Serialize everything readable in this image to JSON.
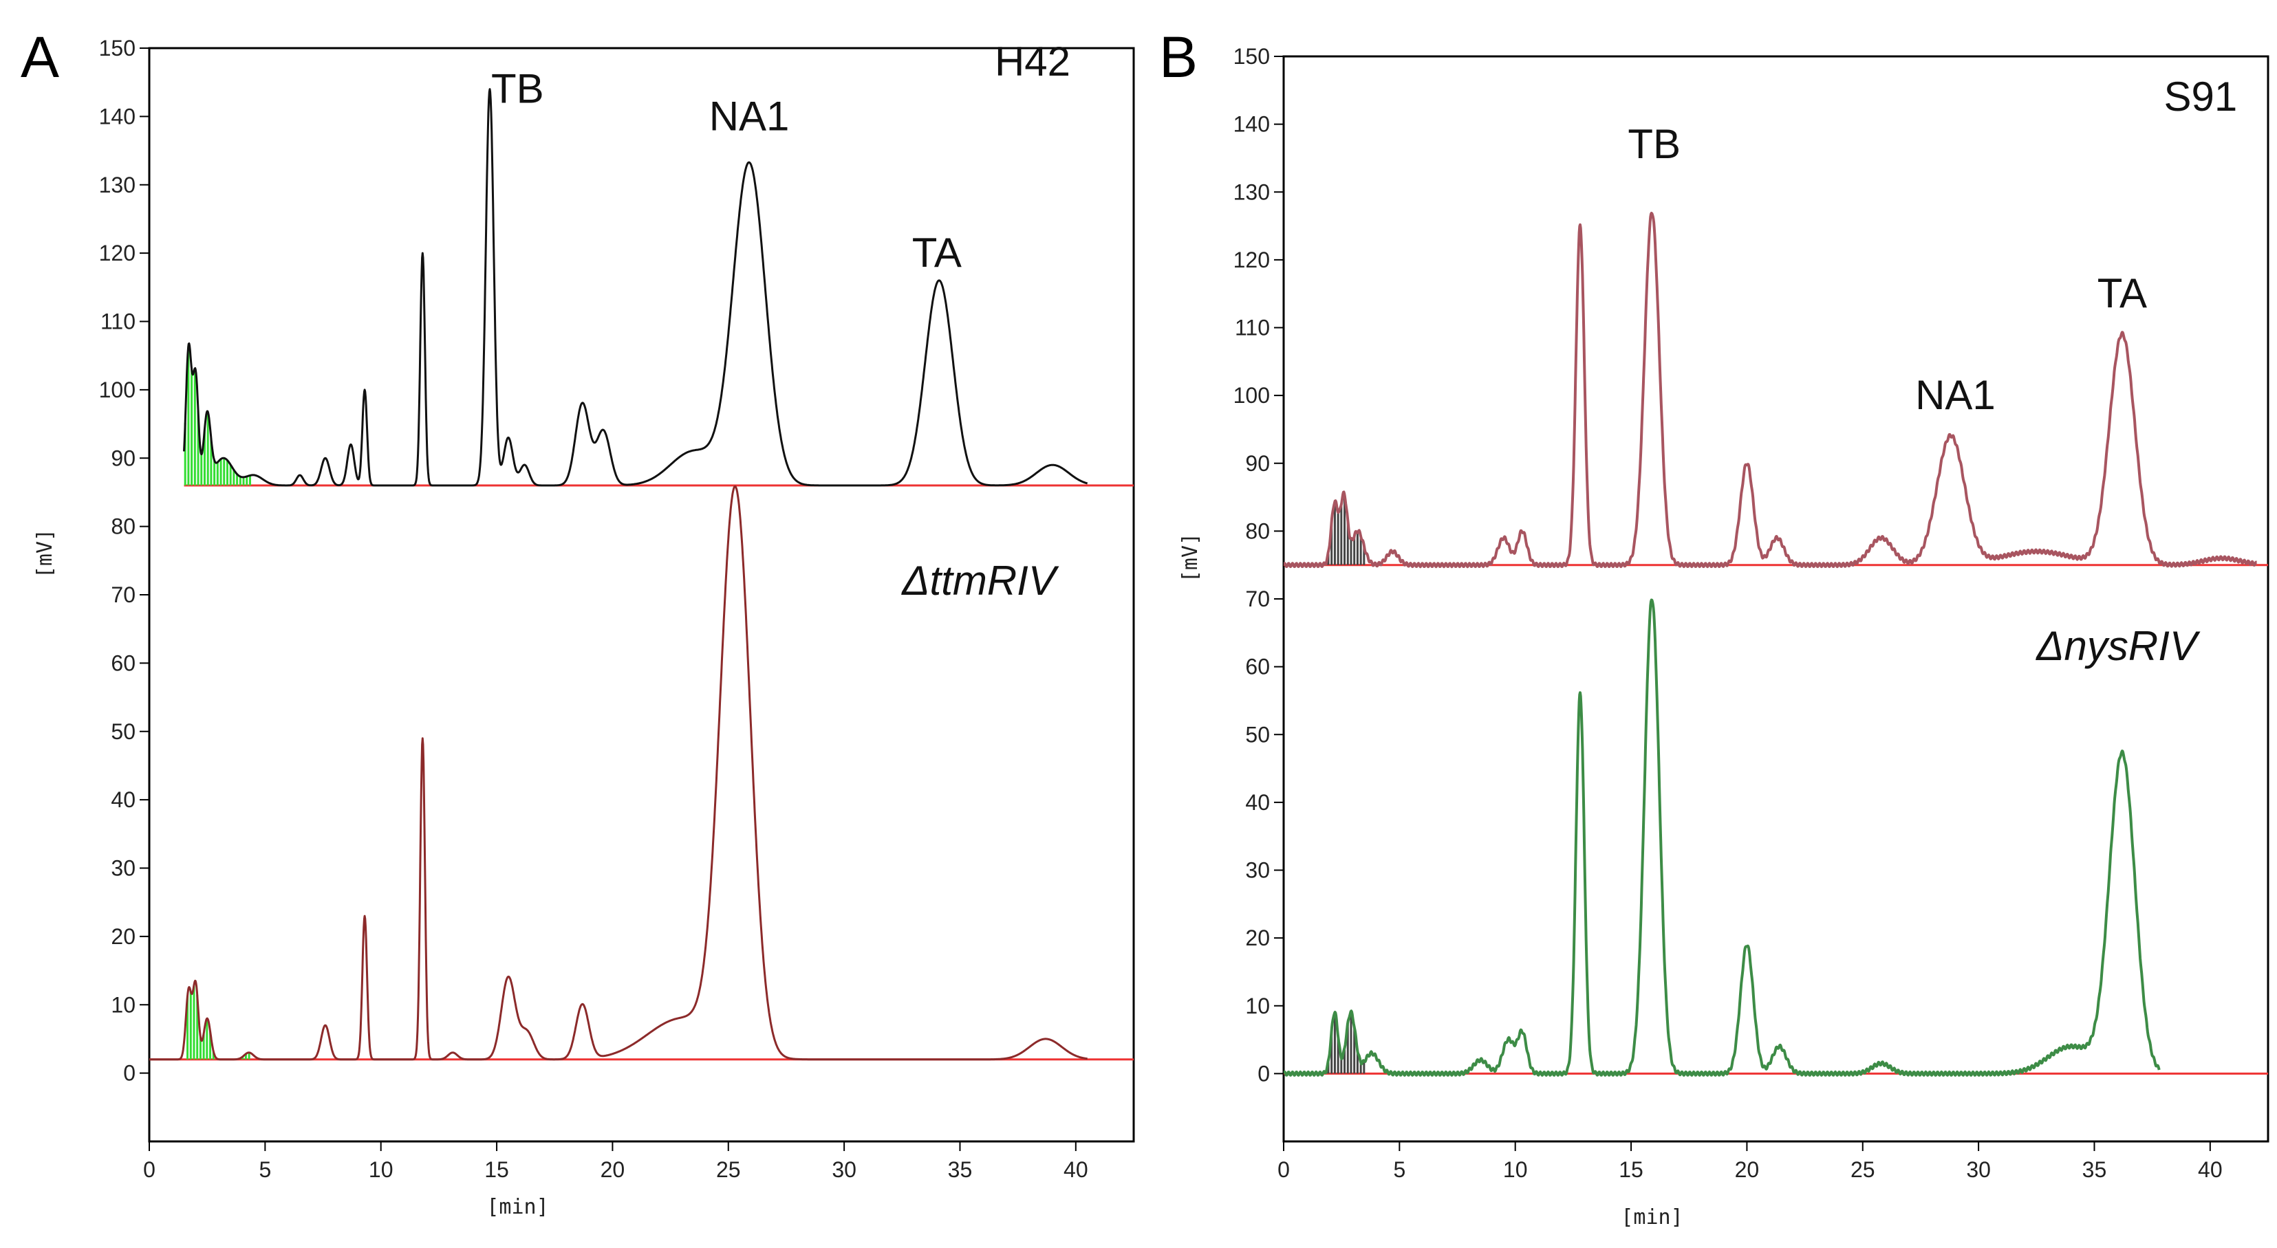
{
  "chart_data": [
    {
      "panel_label": "A",
      "type": "line",
      "xlabel": "[min]",
      "ylabel": "[mV]",
      "xlim": [
        0,
        42.5
      ],
      "x_ticks": [
        0,
        5,
        10,
        15,
        20,
        25,
        30,
        35,
        40
      ],
      "x_tick_labels": [
        "0",
        "5",
        "10",
        "15",
        "20",
        "25",
        "30",
        "35",
        "40"
      ],
      "ylim": [
        -10,
        150
      ],
      "y_ticks": [
        0,
        10,
        20,
        30,
        40,
        50,
        60,
        70,
        80,
        90,
        100,
        110,
        120,
        130,
        140,
        150
      ],
      "y_tick_labels": [
        "0",
        "10",
        "20",
        "30",
        "40",
        "50",
        "60",
        "70",
        "80",
        "90",
        "100",
        "110",
        "120",
        "130",
        "140",
        "150"
      ],
      "series": [
        {
          "name": "H42",
          "color": "#111111",
          "baseline": 86,
          "start": 1.5,
          "end": 40.5,
          "peaks": [
            [
              1.7,
              20,
              0.12
            ],
            [
              2.0,
              16,
              0.12
            ],
            [
              2.5,
              10,
              0.15
            ],
            [
              3.2,
              4,
              0.4
            ],
            [
              4.5,
              1.5,
              0.4
            ],
            [
              6.5,
              1.5,
              0.15
            ],
            [
              7.6,
              4,
              0.18
            ],
            [
              8.7,
              6,
              0.15
            ],
            [
              9.3,
              14,
              0.1
            ],
            [
              11.8,
              34,
              0.1
            ],
            [
              14.7,
              58,
              0.17
            ],
            [
              15.5,
              7,
              0.2
            ],
            [
              16.2,
              3,
              0.2
            ],
            [
              18.7,
              12,
              0.3
            ],
            [
              19.6,
              8,
              0.3
            ],
            [
              23.5,
              5,
              1.0
            ],
            [
              25.9,
              47,
              0.7
            ],
            [
              34.1,
              30,
              0.6
            ],
            [
              39.0,
              3,
              0.7
            ]
          ],
          "label": "H42",
          "label_x": 36.5,
          "label_y": 146
        },
        {
          "name": "ΔttmRIV",
          "color": "#8c2a2a",
          "baseline": 2,
          "start": 0,
          "end": 40.5,
          "peaks": [
            [
              1.7,
              10,
              0.12
            ],
            [
              2.0,
              11,
              0.12
            ],
            [
              2.5,
              6,
              0.15
            ],
            [
              4.3,
              1,
              0.2
            ],
            [
              7.6,
              5,
              0.18
            ],
            [
              9.3,
              21,
              0.1
            ],
            [
              11.8,
              47,
              0.1
            ],
            [
              13.1,
              1,
              0.2
            ],
            [
              15.5,
              12,
              0.3
            ],
            [
              16.3,
              4,
              0.3
            ],
            [
              18.7,
              8,
              0.28
            ],
            [
              23.0,
              6,
              1.5
            ],
            [
              25.3,
              82,
              0.65
            ],
            [
              38.7,
              3,
              0.7
            ]
          ],
          "label": "ΔttmRIV",
          "label_x": 32.5,
          "label_y": 70
        }
      ],
      "annotations": [
        {
          "text": "TB",
          "x": 15.9,
          "y": 142
        },
        {
          "text": "NA1",
          "x": 25.9,
          "y": 138
        },
        {
          "text": "TA",
          "x": 34.0,
          "y": 118
        }
      ],
      "baseline_color": "#ee3333",
      "fill_color": "#33dd33"
    },
    {
      "panel_label": "B",
      "type": "line",
      "xlabel": "[min]",
      "ylabel": "[mV]",
      "xlim": [
        0,
        42.5
      ],
      "x_ticks": [
        0,
        5,
        10,
        15,
        20,
        25,
        30,
        35,
        40
      ],
      "x_tick_labels": [
        "0",
        "5",
        "10",
        "15",
        "20",
        "25",
        "30",
        "35",
        "40"
      ],
      "ylim": [
        -10,
        150
      ],
      "y_ticks": [
        0,
        10,
        20,
        30,
        40,
        50,
        60,
        70,
        80,
        90,
        100,
        110,
        120,
        130,
        140,
        150
      ],
      "y_tick_labels": [
        "0",
        "10",
        "20",
        "30",
        "40",
        "50",
        "60",
        "70",
        "80",
        "90",
        "100",
        "110",
        "120",
        "130",
        "140",
        "150"
      ],
      "series": [
        {
          "name": "S91",
          "color": "#a85560",
          "baseline": 75,
          "start": 0,
          "end": 42,
          "peaks": [
            [
              2.2,
              9,
              0.15
            ],
            [
              2.6,
              10,
              0.15
            ],
            [
              3.2,
              5,
              0.25
            ],
            [
              4.7,
              2,
              0.25
            ],
            [
              9.5,
              4,
              0.25
            ],
            [
              10.3,
              5,
              0.2
            ],
            [
              12.8,
              50,
              0.18
            ],
            [
              15.9,
              52,
              0.32
            ],
            [
              20.0,
              15,
              0.28
            ],
            [
              21.3,
              4,
              0.3
            ],
            [
              25.8,
              4,
              0.5
            ],
            [
              28.8,
              19,
              0.6
            ],
            [
              32.5,
              2,
              1.5
            ],
            [
              36.2,
              34,
              0.55
            ],
            [
              40.5,
              1,
              0.8
            ]
          ],
          "label": "S91",
          "label_x": 38.0,
          "label_y": 142
        },
        {
          "name": "ΔnysRIV",
          "color": "#3d8c46",
          "baseline": 0,
          "start": 0,
          "end": 37.8,
          "peaks": [
            [
              2.2,
              9,
              0.15
            ],
            [
              2.9,
              9,
              0.2
            ],
            [
              3.8,
              3,
              0.3
            ],
            [
              8.5,
              2,
              0.3
            ],
            [
              9.7,
              5,
              0.25
            ],
            [
              10.3,
              6,
              0.2
            ],
            [
              12.8,
              56,
              0.18
            ],
            [
              15.9,
              70,
              0.32
            ],
            [
              20.0,
              19,
              0.28
            ],
            [
              21.4,
              4,
              0.3
            ],
            [
              25.8,
              1.5,
              0.4
            ],
            [
              34.0,
              4,
              1.0
            ],
            [
              36.2,
              47,
              0.55
            ]
          ],
          "label": "ΔnysRIV",
          "label_x": 32.5,
          "label_y": 61
        }
      ],
      "annotations": [
        {
          "text": "TB",
          "x": 16.0,
          "y": 135
        },
        {
          "text": "NA1",
          "x": 29.0,
          "y": 98
        },
        {
          "text": "TA",
          "x": 36.2,
          "y": 113
        }
      ],
      "baseline_color": "#ee3333",
      "fill_color": "#444444"
    }
  ]
}
